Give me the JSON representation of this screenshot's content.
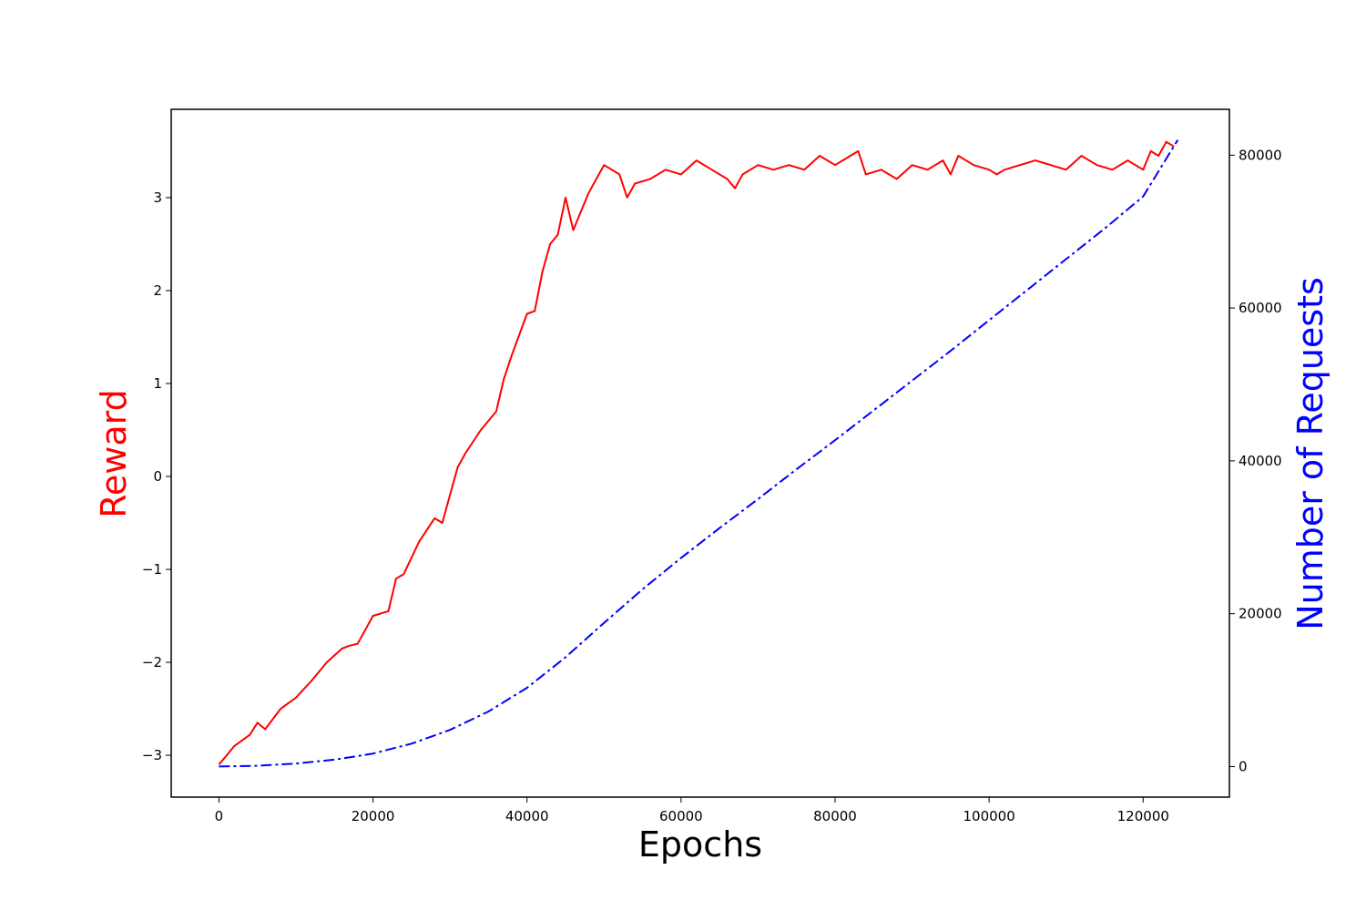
{
  "chart_data": {
    "type": "line",
    "title": "",
    "xlabel": "Epochs",
    "ylabel": "Reward",
    "y2label": "Number of Requests",
    "xlim": [
      -6200,
      131200
    ],
    "ylim": [
      -3.45,
      3.95
    ],
    "y2lim": [
      -4000,
      86000
    ],
    "xticks": [
      0,
      20000,
      40000,
      60000,
      80000,
      100000,
      120000
    ],
    "xtick_labels": [
      "0",
      "20000",
      "40000",
      "60000",
      "80000",
      "100000",
      "120000"
    ],
    "yticks": [
      -3,
      -2,
      -1,
      0,
      1,
      2,
      3
    ],
    "ytick_labels": [
      "−3",
      "−2",
      "−1",
      "0",
      "1",
      "2",
      "3"
    ],
    "y2ticks": [
      0,
      20000,
      40000,
      60000,
      80000
    ],
    "y2tick_labels": [
      "0",
      "20000",
      "40000",
      "60000",
      "80000"
    ],
    "grid": false,
    "legend": "none",
    "series": [
      {
        "axis": "left",
        "color": "#ff0000",
        "style": "solid",
        "x": [
          0,
          1000,
          2000,
          4000,
          5000,
          6000,
          8000,
          10000,
          12000,
          14000,
          16000,
          17000,
          18000,
          20000,
          22000,
          23000,
          24000,
          26000,
          28000,
          29000,
          30000,
          31000,
          32000,
          34000,
          36000,
          37000,
          38000,
          40000,
          41000,
          42000,
          43000,
          44000,
          45000,
          46000,
          47000,
          48000,
          49000,
          50000,
          52000,
          53000,
          54000,
          56000,
          58000,
          60000,
          62000,
          64000,
          66000,
          67000,
          68000,
          70000,
          72000,
          74000,
          76000,
          78000,
          80000,
          82000,
          83000,
          84000,
          86000,
          88000,
          90000,
          92000,
          94000,
          95000,
          96000,
          98000,
          100000,
          101000,
          102000,
          104000,
          106000,
          108000,
          110000,
          112000,
          114000,
          116000,
          118000,
          120000,
          121000,
          122000,
          123000,
          124000
        ],
        "y": [
          -3.1,
          -3.0,
          -2.9,
          -2.78,
          -2.65,
          -2.72,
          -2.5,
          -2.38,
          -2.2,
          -2.0,
          -1.85,
          -1.82,
          -1.8,
          -1.5,
          -1.45,
          -1.1,
          -1.05,
          -0.7,
          -0.45,
          -0.5,
          -0.2,
          0.1,
          0.25,
          0.5,
          0.7,
          1.05,
          1.3,
          1.75,
          1.78,
          2.2,
          2.5,
          2.6,
          3.0,
          2.65,
          2.85,
          3.05,
          3.2,
          3.35,
          3.25,
          3.0,
          3.15,
          3.2,
          3.3,
          3.25,
          3.4,
          3.3,
          3.2,
          3.1,
          3.25,
          3.35,
          3.3,
          3.35,
          3.3,
          3.45,
          3.35,
          3.45,
          3.5,
          3.25,
          3.3,
          3.2,
          3.35,
          3.3,
          3.4,
          3.25,
          3.45,
          3.35,
          3.3,
          3.25,
          3.3,
          3.35,
          3.4,
          3.35,
          3.3,
          3.45,
          3.35,
          3.3,
          3.4,
          3.3,
          3.5,
          3.45,
          3.6,
          3.55
        ]
      },
      {
        "axis": "right",
        "color": "#0000ff",
        "style": "dashdot",
        "x": [
          0,
          5000,
          10000,
          15000,
          20000,
          25000,
          30000,
          35000,
          40000,
          45000,
          50000,
          55000,
          60000,
          65000,
          70000,
          75000,
          80000,
          85000,
          90000,
          95000,
          100000,
          105000,
          110000,
          115000,
          120000,
          124500
        ],
        "y": [
          0,
          100,
          400,
          900,
          1700,
          3000,
          4800,
          7200,
          10300,
          14300,
          18800,
          23200,
          27300,
          31200,
          35000,
          38900,
          42700,
          46600,
          50500,
          54400,
          58400,
          62400,
          66400,
          70400,
          74600,
          82000
        ]
      }
    ]
  }
}
